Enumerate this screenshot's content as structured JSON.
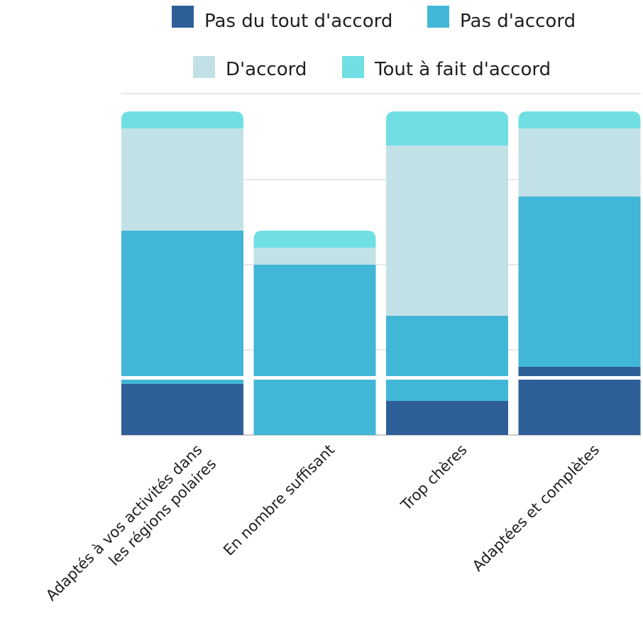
{
  "chart_data": {
    "type": "bar",
    "stacked": true,
    "title": "",
    "xlabel": "",
    "ylabel": "",
    "ylim": [
      0,
      19
    ],
    "grid": true,
    "legend_position": "top",
    "categories": [
      "Adaptés à vos activités dans les régions polaires",
      "En nombre suffisant",
      "Trop chères",
      "Adaptées et complètes"
    ],
    "category_lines": [
      [
        "Adaptés à vos activités dans",
        "les régions polaires"
      ],
      [
        "En nombre suffisant"
      ],
      [
        "Trop chères"
      ],
      [
        "Adaptées et complètes"
      ]
    ],
    "series": [
      {
        "name": "Pas du tout d'accord",
        "color": "#2e5f98",
        "values": [
          3,
          0,
          2,
          4
        ]
      },
      {
        "name": "Pas d'accord",
        "color": "#42b6d6",
        "values": [
          9,
          10,
          5,
          10
        ]
      },
      {
        "name": "D'accord",
        "color": "#c2e1e6",
        "values": [
          6,
          1,
          10,
          4
        ]
      },
      {
        "name": "Tout à fait d'accord",
        "color": "#6fdfe3",
        "values": [
          1,
          1,
          2,
          1
        ]
      }
    ]
  }
}
